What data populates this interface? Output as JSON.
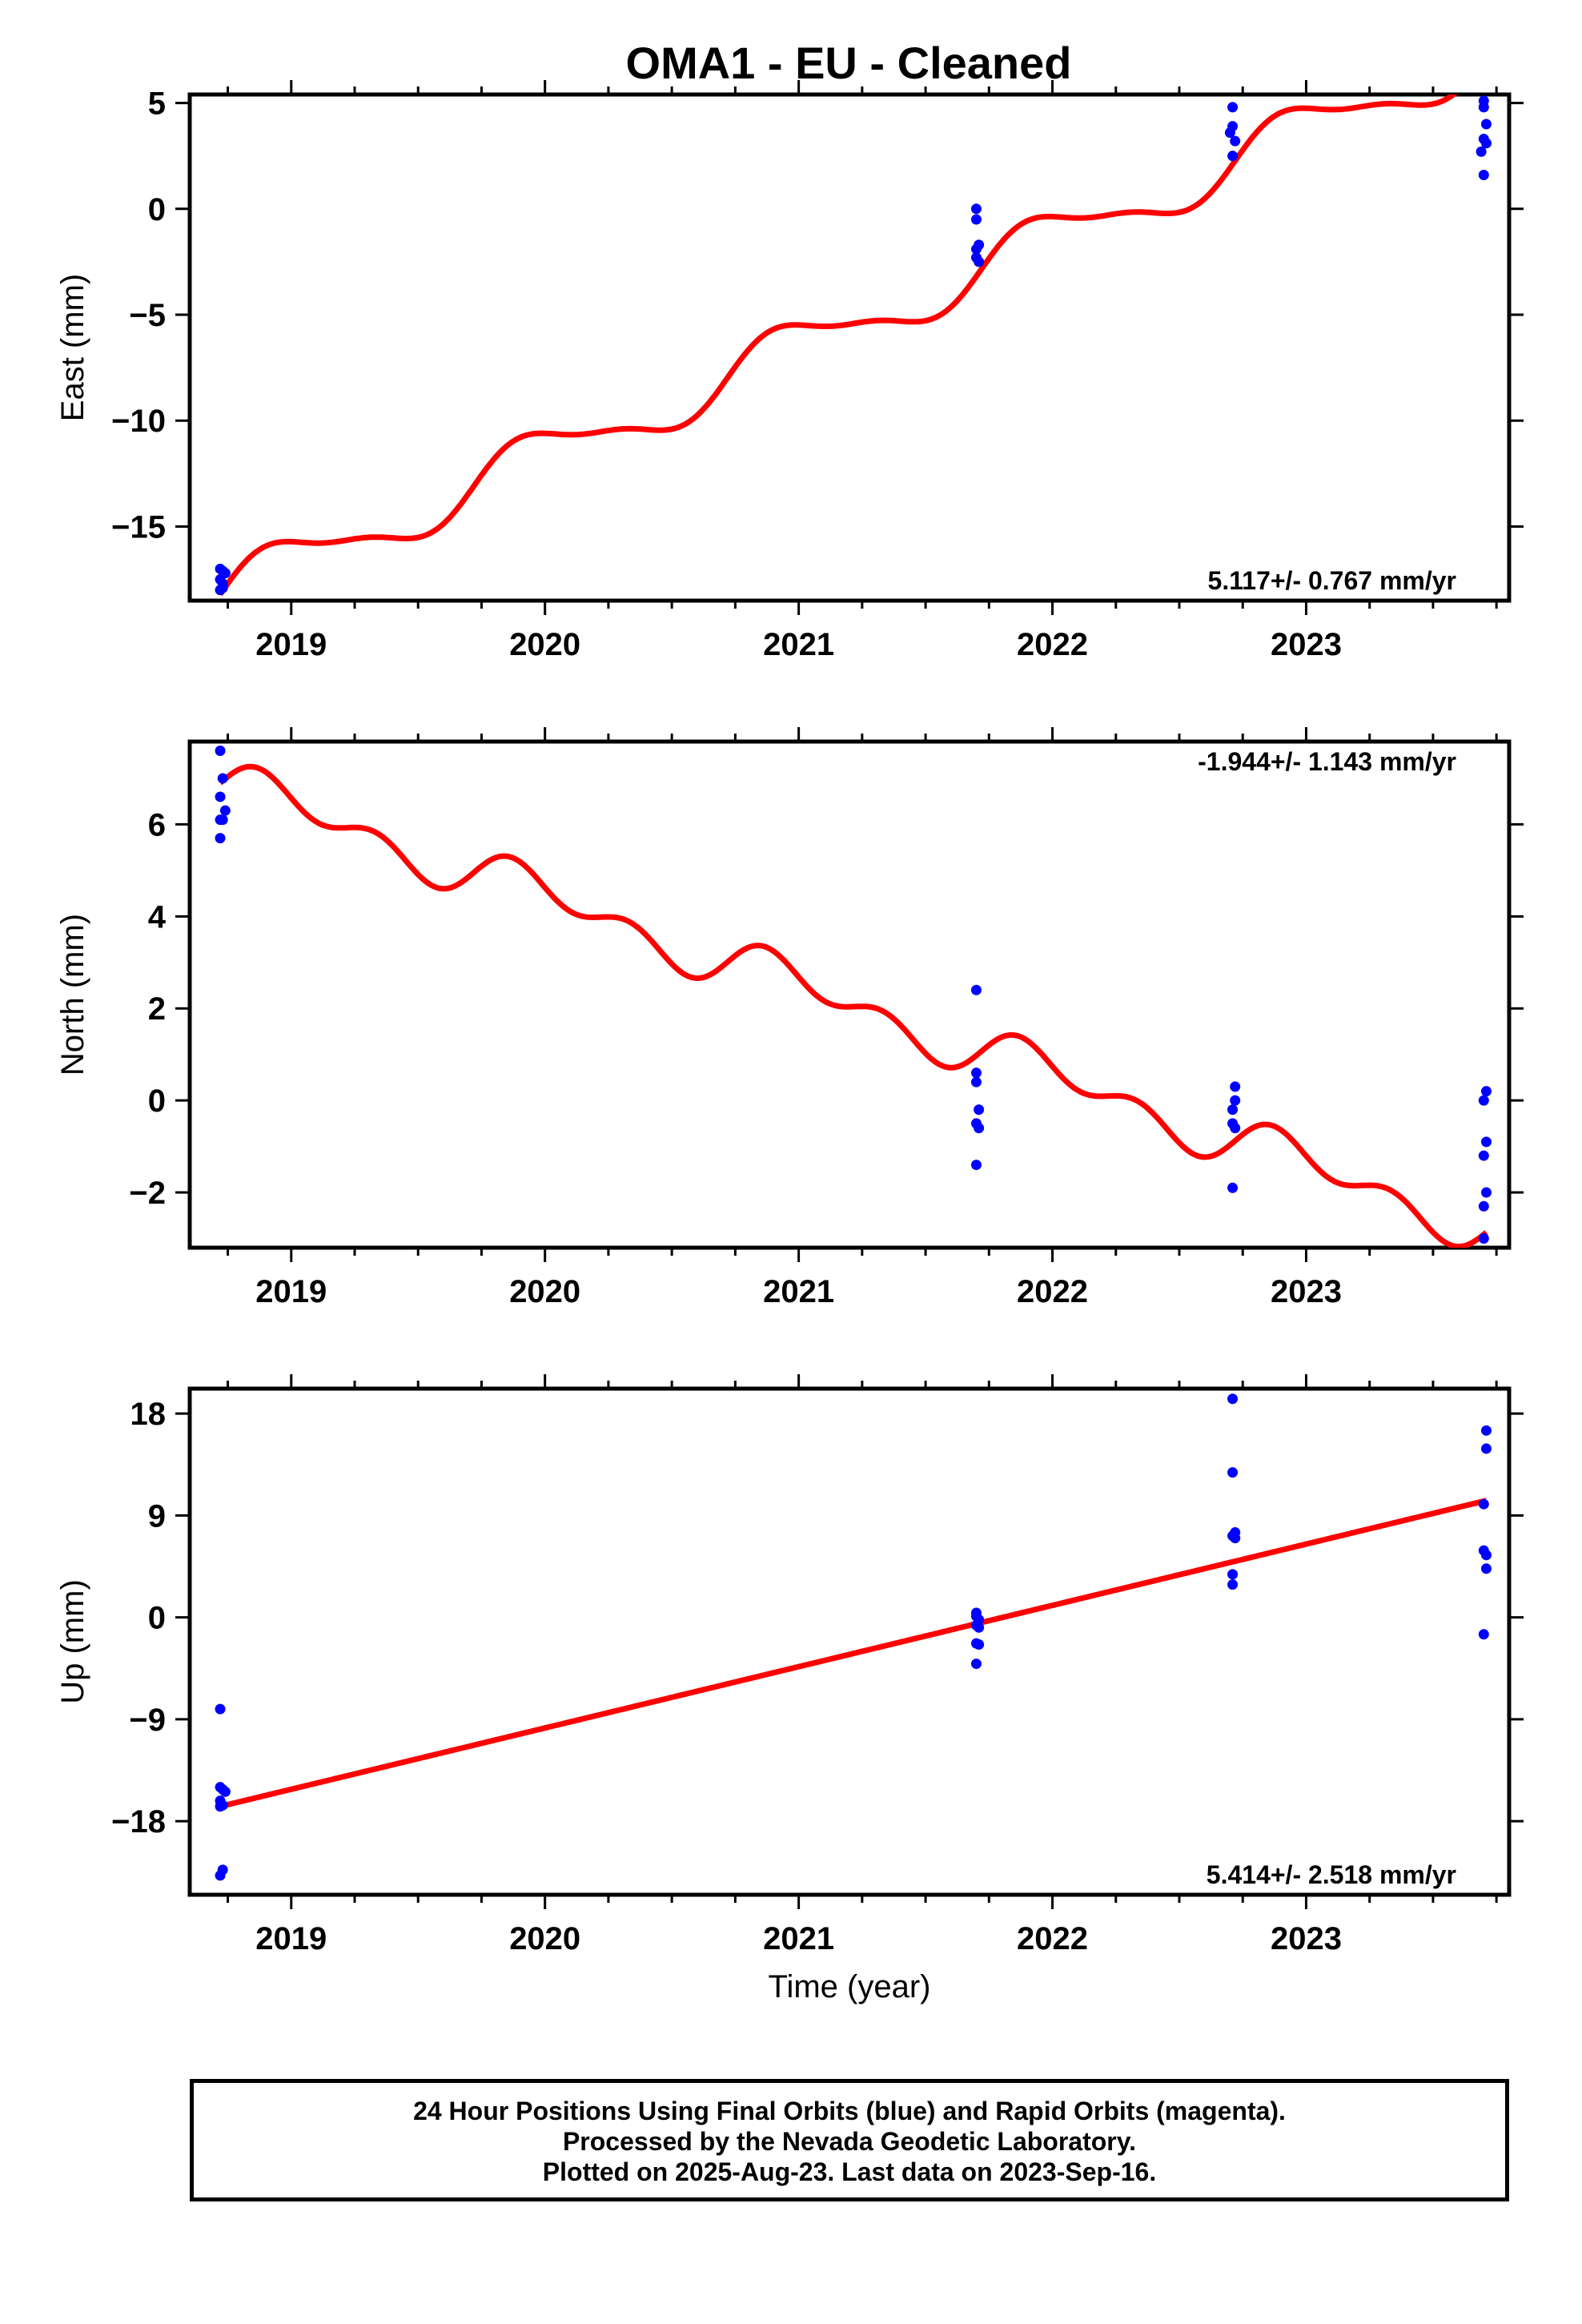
{
  "title": "OMA1  - EU - Cleaned",
  "colors": {
    "final_orbits": "#0000ff",
    "model": "#ff0000",
    "frame": "#000000"
  },
  "x_axis": {
    "label": "Time (year)",
    "range": [
      2018.6,
      2023.8
    ],
    "tick_labels": [
      "2019",
      "2020",
      "2021",
      "2022",
      "2023"
    ],
    "ticks": [
      2019,
      2020,
      2021,
      2022,
      2023
    ]
  },
  "panels": [
    {
      "key": "east",
      "ylabel": "East (mm)",
      "rate_text": "5.117+/- 0.767 mm/yr",
      "rate_position": "bottom-right"
    },
    {
      "key": "north",
      "ylabel": "North (mm)",
      "rate_text": "-1.944+/- 1.143 mm/yr",
      "rate_position": "top-right"
    },
    {
      "key": "up",
      "ylabel": "Up (mm)",
      "rate_text": "5.414+/- 2.518 mm/yr",
      "rate_position": "bottom-right"
    }
  ],
  "footer": {
    "line1": "24 Hour Positions Using Final Orbits (blue) and Rapid Orbits (magenta).",
    "line2": "Processed by the Nevada Geodetic Laboratory.",
    "line3": "Plotted on 2025-Aug-23. Last data on 2023-Sep-16."
  },
  "chart_data": [
    {
      "type": "scatter",
      "title": "OMA1  - EU - Cleaned",
      "xlabel": "",
      "ylabel": "East (mm)",
      "xlim": [
        2018.6,
        2023.8
      ],
      "ylim": [
        -18.5,
        5.4
      ],
      "yticks": [
        5,
        0,
        -5,
        -10,
        -15
      ],
      "ytick_labels": [
        "5",
        "0",
        "−5",
        "−10",
        "−15"
      ],
      "x_tick_labels": [
        "2019",
        "2020",
        "2021",
        "2022",
        "2023"
      ],
      "rate": "5.117+/- 0.767 mm/yr",
      "points": [
        [
          2018.72,
          -17.0
        ],
        [
          2018.73,
          -17.1
        ],
        [
          2018.72,
          -17.5
        ],
        [
          2018.73,
          -17.7
        ],
        [
          2018.74,
          -17.2
        ],
        [
          2018.72,
          -18.0
        ],
        [
          2018.73,
          -17.9
        ],
        [
          2021.7,
          0.0
        ],
        [
          2021.7,
          -0.5
        ],
        [
          2021.71,
          -1.7
        ],
        [
          2021.7,
          -1.9
        ],
        [
          2021.7,
          -2.3
        ],
        [
          2021.71,
          -2.5
        ],
        [
          2022.71,
          4.8
        ],
        [
          2022.71,
          3.9
        ],
        [
          2022.7,
          3.6
        ],
        [
          2022.72,
          3.2
        ],
        [
          2022.71,
          2.5
        ],
        [
          2023.7,
          5.1
        ],
        [
          2023.7,
          4.8
        ],
        [
          2023.71,
          4.0
        ],
        [
          2023.7,
          3.3
        ],
        [
          2023.71,
          3.1
        ],
        [
          2023.69,
          2.7
        ],
        [
          2023.7,
          1.6
        ]
      ],
      "model": {
        "x_start": 2018.72,
        "x_end": 2023.71,
        "intercept_at_start": -18.2,
        "rate": 5.117,
        "annual_amp": 1.2,
        "annual_phase": -0.0
      }
    },
    {
      "type": "scatter",
      "title": "",
      "xlabel": "",
      "ylabel": "North (mm)",
      "xlim": [
        2018.6,
        2023.8
      ],
      "ylim": [
        -3.2,
        7.8
      ],
      "yticks": [
        6,
        4,
        2,
        0,
        -2
      ],
      "ytick_labels": [
        "6",
        "4",
        "2",
        "0",
        "−2"
      ],
      "x_tick_labels": [
        "2019",
        "2020",
        "2021",
        "2022",
        "2023"
      ],
      "rate": "-1.944+/- 1.143 mm/yr",
      "points": [
        [
          2018.72,
          7.6
        ],
        [
          2018.73,
          7.0
        ],
        [
          2018.72,
          6.6
        ],
        [
          2018.74,
          6.3
        ],
        [
          2018.72,
          6.1
        ],
        [
          2018.73,
          6.1
        ],
        [
          2018.72,
          5.7
        ],
        [
          2021.7,
          2.4
        ],
        [
          2021.7,
          0.6
        ],
        [
          2021.7,
          0.4
        ],
        [
          2021.71,
          -0.2
        ],
        [
          2021.7,
          -0.5
        ],
        [
          2021.71,
          -0.6
        ],
        [
          2021.7,
          -1.4
        ],
        [
          2022.72,
          0.3
        ],
        [
          2022.72,
          0.0
        ],
        [
          2022.71,
          -0.2
        ],
        [
          2022.71,
          -0.5
        ],
        [
          2022.72,
          -0.6
        ],
        [
          2022.71,
          -1.9
        ],
        [
          2023.71,
          0.2
        ],
        [
          2023.7,
          0.0
        ],
        [
          2023.71,
          -0.9
        ],
        [
          2023.7,
          -1.2
        ],
        [
          2023.71,
          -2.0
        ],
        [
          2023.7,
          -2.3
        ],
        [
          2023.7,
          -3.0
        ]
      ],
      "model": {
        "x_start": 2018.72,
        "x_end": 2023.71,
        "intercept_at_start": 6.9,
        "rate": -1.944,
        "annual_amp": 0.35,
        "annual_phase": 0.0
      }
    },
    {
      "type": "scatter",
      "title": "",
      "xlabel": "Time (year)",
      "ylabel": "Up (mm)",
      "xlim": [
        2018.6,
        2023.8
      ],
      "ylim": [
        -24.5,
        20.2
      ],
      "yticks": [
        18,
        9,
        0,
        -9,
        -18
      ],
      "ytick_labels": [
        "18",
        "9",
        "0",
        "−9",
        "−18"
      ],
      "x_tick_labels": [
        "2019",
        "2020",
        "2021",
        "2022",
        "2023"
      ],
      "rate": "5.414+/- 2.518 mm/yr",
      "points": [
        [
          2018.72,
          -8.1
        ],
        [
          2018.72,
          -15.0
        ],
        [
          2018.73,
          -15.2
        ],
        [
          2018.74,
          -15.4
        ],
        [
          2018.72,
          -16.2
        ],
        [
          2018.73,
          -16.6
        ],
        [
          2018.72,
          -16.7
        ],
        [
          2018.73,
          -22.3
        ],
        [
          2018.72,
          -22.8
        ],
        [
          2021.7,
          0.4
        ],
        [
          2021.7,
          0.1
        ],
        [
          2021.71,
          -0.2
        ],
        [
          2021.7,
          -0.7
        ],
        [
          2021.71,
          -0.9
        ],
        [
          2021.7,
          -2.3
        ],
        [
          2021.71,
          -2.4
        ],
        [
          2021.7,
          -4.1
        ],
        [
          2022.71,
          19.3
        ],
        [
          2022.71,
          12.8
        ],
        [
          2022.72,
          7.5
        ],
        [
          2022.71,
          7.2
        ],
        [
          2022.72,
          7.0
        ],
        [
          2022.71,
          3.8
        ],
        [
          2022.71,
          2.9
        ],
        [
          2023.71,
          16.5
        ],
        [
          2023.71,
          14.9
        ],
        [
          2023.7,
          10.0
        ],
        [
          2023.7,
          5.9
        ],
        [
          2023.71,
          5.5
        ],
        [
          2023.71,
          4.3
        ],
        [
          2023.7,
          -1.5
        ]
      ],
      "model": {
        "x_start": 2018.72,
        "x_end": 2023.71,
        "intercept_at_start": -16.7,
        "rate": 5.414,
        "annual_amp": 0.0,
        "annual_phase": 0.0
      }
    }
  ]
}
